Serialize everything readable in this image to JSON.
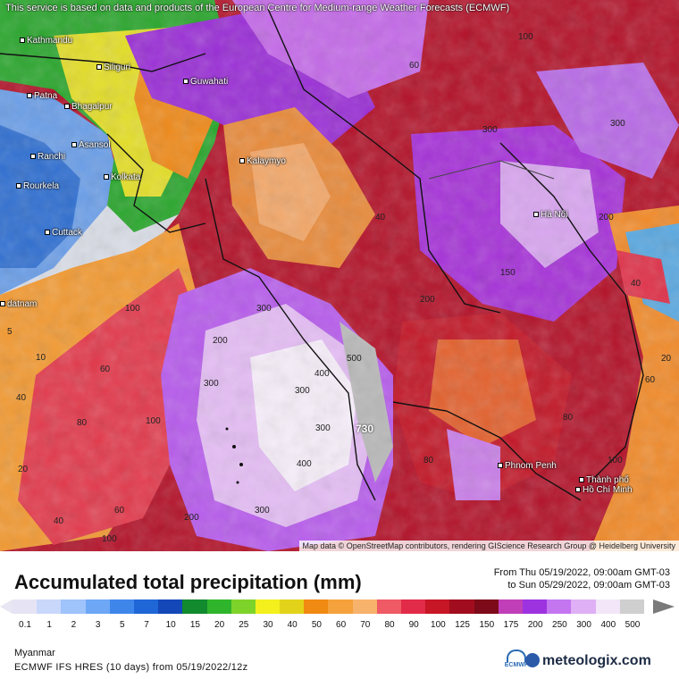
{
  "map": {
    "notice": "This service is based on data and products of the European Centre for Medium-range Weather Forecasts (ECMWF)",
    "attribution": "Map data © OpenStreetMap contributors, rendering GIScience Research Group @ Heidelberg University",
    "cities": [
      {
        "name": "Kathmandu"
      },
      {
        "name": "Siliguri"
      },
      {
        "name": "Guwahati"
      },
      {
        "name": "Patna"
      },
      {
        "name": "Bhagalpur"
      },
      {
        "name": "Asansol"
      },
      {
        "name": "Ranchi"
      },
      {
        "name": "Kolkata"
      },
      {
        "name": "Rourkela"
      },
      {
        "name": "Cuttack"
      },
      {
        "name": "Kalaymyo"
      },
      {
        "name": "Hà Nội"
      },
      {
        "name": "Phnom Penh"
      },
      {
        "name": "Thành phố"
      },
      {
        "name": "Hồ Chí Minh"
      },
      {
        "name": "datnam"
      }
    ],
    "values": [
      "300",
      "400",
      "300",
      "300",
      "300",
      "730",
      "200",
      "100",
      "40",
      "80",
      "60",
      "100",
      "500",
      "400",
      "300",
      "200",
      "100",
      "60",
      "40",
      "20",
      "10",
      "5",
      "300",
      "200",
      "40",
      "60",
      "80",
      "100",
      "150",
      "200",
      "300",
      "100",
      "60",
      "40",
      "20",
      "80"
    ]
  },
  "legend": {
    "title": "Accumulated total precipitation (mm)",
    "from": "From Thu 05/19/2022, 09:00am GMT-03",
    "to": "to Sun 05/29/2022, 09:00am GMT-03",
    "ticks": [
      "0.1",
      "1",
      "2",
      "3",
      "5",
      "7",
      "10",
      "15",
      "20",
      "25",
      "30",
      "40",
      "50",
      "60",
      "70",
      "80",
      "90",
      "100",
      "125",
      "150",
      "175",
      "200",
      "250",
      "300",
      "400",
      "500"
    ],
    "colors": [
      "#e6e4f4",
      "#c9d7fb",
      "#9fc3fb",
      "#6da7f6",
      "#3f86ea",
      "#1f66d6",
      "#1448b8",
      "#128a2e",
      "#2fb52b",
      "#7ed32a",
      "#f3f01d",
      "#e3d21a",
      "#f08a12",
      "#f5a23c",
      "#f7b26b",
      "#ef5a64",
      "#e12b48",
      "#c71626",
      "#a10d1e",
      "#7d0a18",
      "#c03fb8",
      "#9d33e0",
      "#c475f0",
      "#dfb0f5",
      "#f2e6f8",
      "#cfcfcf"
    ],
    "region": "Myanmar",
    "model": "ECMWF IFS HRES (10 days) from 05/19/2022/12z",
    "brand": "meteologix.com",
    "ecmwf_label": "ECMWF"
  }
}
